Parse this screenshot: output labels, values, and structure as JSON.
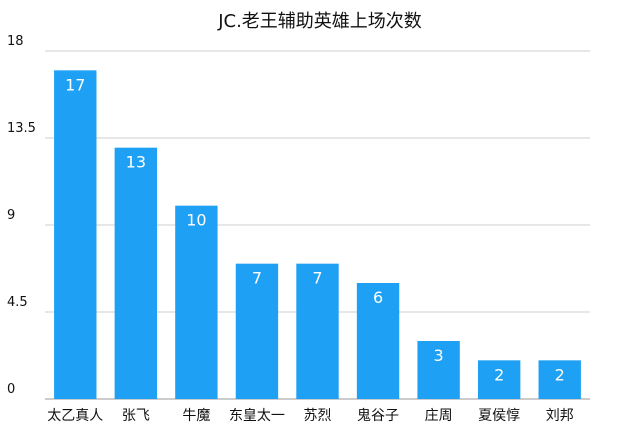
{
  "chart_data": {
    "type": "bar",
    "title": "JC.老王辅助英雄上场次数",
    "categories": [
      "太乙真人",
      "张飞",
      "牛魔",
      "东皇太一",
      "苏烈",
      "鬼谷子",
      "庄周",
      "夏侯惇",
      "刘邦"
    ],
    "values": [
      17,
      13,
      10,
      7,
      7,
      6,
      3,
      2,
      2
    ],
    "ylim": [
      0,
      18
    ],
    "yticks": [
      "0",
      "4.5",
      "9",
      "13.5",
      "18"
    ],
    "xlabel": "",
    "ylabel": "",
    "grid": true,
    "data_labels": true,
    "bar_color": "#1ea0f4"
  }
}
